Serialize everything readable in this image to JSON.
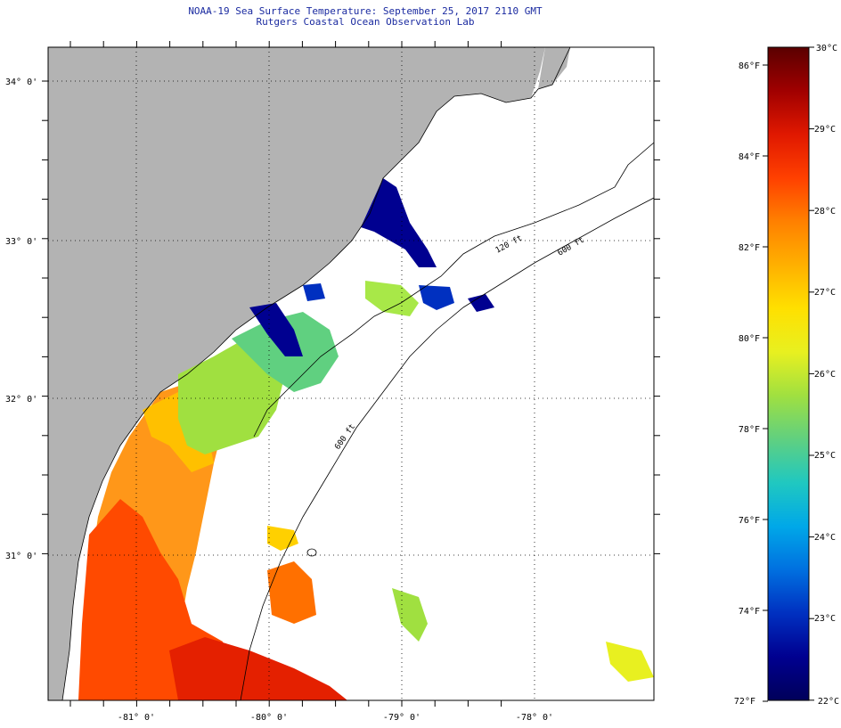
{
  "header": {
    "title": "NOAA-19 Sea Surface Temperature:  September 25, 2017 2110 GMT",
    "subtitle": "Rutgers Coastal Ocean Observation Lab"
  },
  "map": {
    "lat_labels": [
      "34° 0'",
      "33° 0'",
      "32° 0'",
      "31° 0'"
    ],
    "lon_labels": [
      "-81° 0'",
      "-80° 0'",
      "-79° 0'",
      "-78° 0'"
    ],
    "isobaths": [
      "120 ft",
      "600 ft",
      "600 ft"
    ],
    "land_color": "#b3b3b3",
    "ocean_color": "#ffffff"
  },
  "colorbar": {
    "fahrenheit_labels": [
      "86°F",
      "84°F",
      "82°F",
      "80°F",
      "78°F",
      "76°F",
      "74°F",
      "72°F"
    ],
    "celsius_labels": [
      "30°C",
      "29°C",
      "28°C",
      "27°C",
      "26°C",
      "25°C",
      "24°C",
      "23°C",
      "22°C"
    ],
    "colors": [
      "#5a0000",
      "#a00000",
      "#e01800",
      "#ff4000",
      "#ff8000",
      "#ffb000",
      "#ffe000",
      "#e8f020",
      "#a0e040",
      "#60d080",
      "#20c8c0",
      "#00a8e8",
      "#0070e0",
      "#0030c0",
      "#000090",
      "#00005a"
    ]
  }
}
